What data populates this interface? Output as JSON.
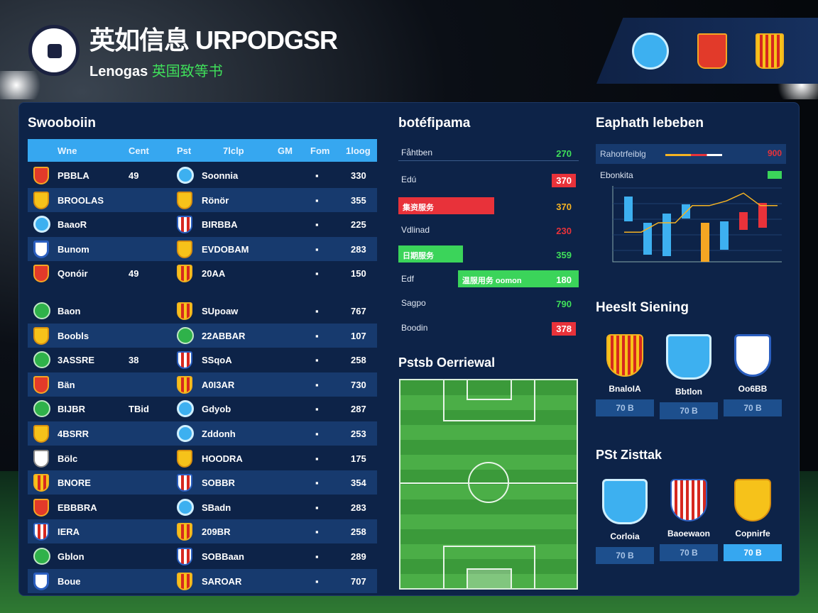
{
  "header": {
    "title": "英如信息 URPODGSR",
    "subtitle_en": "Lenogas",
    "subtitle_cn": "英国致等书",
    "banner_crests": [
      "ball",
      "red",
      "catalan"
    ]
  },
  "standings": {
    "title": "Swooboiin",
    "columns": [
      "Wne",
      "Cent",
      "Pst",
      "7lclp",
      "GM",
      "Fom",
      "1loog"
    ],
    "rows": [
      {
        "c1": "red",
        "name": "PBBLA",
        "cnt": "49",
        "c2": "ball",
        "club": "Soonnia",
        "dot": "▪",
        "val": "330"
      },
      {
        "c1": "yellow",
        "name": "BROOLAS",
        "cnt": "",
        "c2": "yellow",
        "club": "Rönör",
        "dot": "▪",
        "val": "355"
      },
      {
        "c1": "ball",
        "name": "BaaoR",
        "cnt": "",
        "c2": "rw",
        "club": "BIRBBA",
        "dot": "▪",
        "val": "225"
      },
      {
        "c1": "wb",
        "name": "Bunom",
        "cnt": "",
        "c2": "yellow",
        "club": "EVDOBAM",
        "dot": "▪",
        "val": "283"
      },
      {
        "c1": "red",
        "name": "Qonóir",
        "cnt": "49",
        "c2": "cat",
        "club": "20AA",
        "dot": "▪",
        "val": "150"
      },
      {
        "c1": "green",
        "name": "Baon",
        "cnt": "",
        "c2": "cat",
        "club": "SUpoaw",
        "dot": "▪",
        "val": "767"
      },
      {
        "c1": "yellow",
        "name": "Boobls",
        "cnt": "",
        "c2": "green",
        "club": "22ABBAR",
        "dot": "▪",
        "val": "107"
      },
      {
        "c1": "green",
        "name": "3ASSRE",
        "cnt": "38",
        "c2": "rw",
        "club": "SSqoA",
        "dot": "▪",
        "val": "258"
      },
      {
        "c1": "red",
        "name": "Bän",
        "cnt": "",
        "c2": "cat",
        "club": "A0I3AR",
        "dot": "▪",
        "val": "730"
      },
      {
        "c1": "green",
        "name": "BIJBR",
        "cnt": "TBid",
        "c2": "ball",
        "club": "Gdyob",
        "dot": "▪",
        "val": "287"
      },
      {
        "c1": "yellow",
        "name": "4BSRR",
        "cnt": "",
        "c2": "ball",
        "club": "Zddonh",
        "dot": "▪",
        "val": "253"
      },
      {
        "c1": "white",
        "name": "Bölc",
        "cnt": "",
        "c2": "yellow",
        "club": "HOODRA",
        "dot": "▪",
        "val": "175"
      },
      {
        "c1": "cat",
        "name": "BNORE",
        "cnt": "",
        "c2": "rw",
        "club": "SOBBR",
        "dot": "▪",
        "val": "354"
      },
      {
        "c1": "red",
        "name": "EBBBRA",
        "cnt": "",
        "c2": "ball",
        "club": "SBadn",
        "dot": "▪",
        "val": "283"
      },
      {
        "c1": "rw",
        "name": "IERA",
        "cnt": "",
        "c2": "cat",
        "club": "209BR",
        "dot": "▪",
        "val": "258"
      },
      {
        "c1": "green",
        "name": "Gblon",
        "cnt": "",
        "c2": "rw",
        "club": "SOBBaan",
        "dot": "▪",
        "val": "289"
      },
      {
        "c1": "wb",
        "name": "Boue",
        "cnt": "",
        "c2": "cat",
        "club": "SAROAR",
        "dot": "▪",
        "val": "707"
      }
    ]
  },
  "stats": {
    "title": "botéfipama",
    "rows": [
      {
        "label": "Fåhtben",
        "value": "270",
        "color": "#3fe05a",
        "badge": false
      },
      {
        "label": "Edú",
        "value": "370",
        "color": "#ffffff",
        "badge": "#e8323a"
      },
      {
        "label": "",
        "value": "370",
        "color": "#f5b323",
        "bar": {
          "text": "集资服务",
          "color": "#e8323a",
          "pct": 53
        }
      },
      {
        "label": "Vdlinad",
        "value": "230",
        "color": "#e8323a",
        "badge": false
      },
      {
        "label": "",
        "value": "359",
        "color": "#3fe05a",
        "bar": {
          "text": "日期服务",
          "color": "#3bd45a",
          "pct": 36
        }
      },
      {
        "label": "Edf",
        "value": "180",
        "color": "#ffffff",
        "bar": {
          "text": "温服用务 oomon",
          "color": "#3bd45a",
          "pct": 67,
          "right": true
        }
      },
      {
        "label": "Sagpo",
        "value": "790",
        "color": "#3fe05a",
        "badge": false
      },
      {
        "label": "Boodin",
        "value": "378",
        "color": "#ffffff",
        "badge": "#e8323a"
      }
    ]
  },
  "pitch": {
    "title": "Pstsb Oerriewal"
  },
  "analysis": {
    "title": "Eaphath lebeben",
    "row1_label": "Rahotrfeiblg",
    "row1_value": "900",
    "row2_label": "Ebonkita",
    "bars": [
      {
        "v": 0.35,
        "c": "#3db0f0"
      },
      {
        "v": 0.45,
        "c": "#3db0f0"
      },
      {
        "v": 0.6,
        "c": "#3db0f0"
      },
      {
        "v": 0.2,
        "c": "#3db0f0"
      },
      {
        "v": 0.55,
        "c": "#f5a623"
      },
      {
        "v": 0.4,
        "c": "#3db0f0"
      },
      {
        "v": 0.25,
        "c": "#e8323a"
      },
      {
        "v": 0.35,
        "c": "#e8323a"
      }
    ],
    "line": [
      0.38,
      0.38,
      0.5,
      0.5,
      0.72,
      0.72,
      0.78,
      0.88,
      0.72,
      0.72
    ]
  },
  "heads": {
    "title": "Heeslt Siening",
    "cards": [
      {
        "crest": "cat",
        "name": "BnaloIA",
        "btn": "70 B"
      },
      {
        "crest": "ball",
        "name": "Bbtlon",
        "btn": "70 B"
      },
      {
        "crest": "wb",
        "name": "Oo6BB",
        "btn": "70 B"
      }
    ]
  },
  "pst": {
    "title": "PSt Zisttak",
    "cards": [
      {
        "crest": "ball",
        "name": "Corloia",
        "btn": "70 B"
      },
      {
        "crest": "rw",
        "name": "Baoewaon",
        "btn": "70 B"
      },
      {
        "crest": "yellow",
        "name": "Copnirfe",
        "btn": "70 B",
        "active": true
      }
    ]
  }
}
